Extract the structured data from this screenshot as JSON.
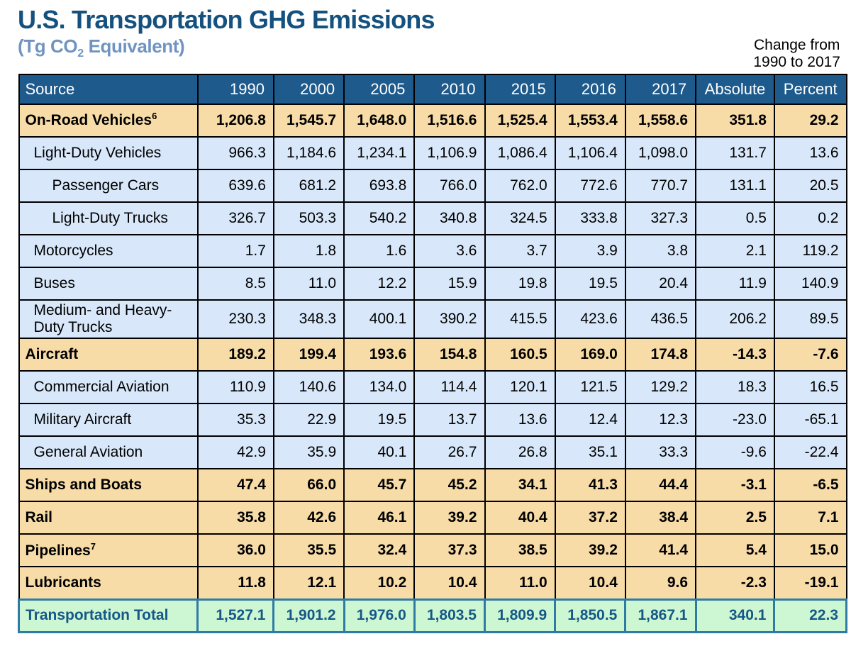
{
  "title": "U.S. Transportation GHG Emissions",
  "subtitle": {
    "pre": "(Tg CO",
    "sub": "2",
    "post": " Equivalent)"
  },
  "change_note": {
    "line1": "Change from",
    "line2": "1990 to 2017"
  },
  "colors": {
    "title": "#14517F",
    "subtitle": "#6F94C1",
    "header_bg": "#1E5A8C",
    "header_text": "#FFFFFF",
    "category_row_bg": "#F8DCA8",
    "sub_row_bg": "#D8E8FA",
    "total_row_bg": "#CDF6D3",
    "total_text": "#155887",
    "total_border": "#2E7CA6",
    "grid_border": "#000000"
  },
  "table": {
    "columns": [
      "Source",
      "1990",
      "2000",
      "2005",
      "2010",
      "2015",
      "2016",
      "2017",
      "Absolute",
      "Percent"
    ],
    "rows": [
      {
        "label": "On-Road Vehicles",
        "sup": "6",
        "level": 0,
        "style": "category",
        "values": [
          "1,206.8",
          "1,545.7",
          "1,648.0",
          "1,516.6",
          "1,525.4",
          "1,553.4",
          "1,558.6",
          "351.8",
          "29.2"
        ]
      },
      {
        "label": "Light-Duty Vehicles",
        "level": 1,
        "style": "sub",
        "values": [
          "966.3",
          "1,184.6",
          "1,234.1",
          "1,106.9",
          "1,086.4",
          "1,106.4",
          "1,098.0",
          "131.7",
          "13.6"
        ]
      },
      {
        "label": "Passenger Cars",
        "level": 2,
        "style": "sub",
        "values": [
          "639.6",
          "681.2",
          "693.8",
          "766.0",
          "762.0",
          "772.6",
          "770.7",
          "131.1",
          "20.5"
        ]
      },
      {
        "label": "Light-Duty Trucks",
        "level": 2,
        "style": "sub",
        "values": [
          "326.7",
          "503.3",
          "540.2",
          "340.8",
          "324.5",
          "333.8",
          "327.3",
          "0.5",
          "0.2"
        ]
      },
      {
        "label": "Motorcycles",
        "level": 1,
        "style": "sub",
        "values": [
          "1.7",
          "1.8",
          "1.6",
          "3.6",
          "3.7",
          "3.9",
          "3.8",
          "2.1",
          "119.2"
        ]
      },
      {
        "label": "Buses",
        "level": 1,
        "style": "sub",
        "values": [
          "8.5",
          "11.0",
          "12.2",
          "15.9",
          "19.8",
          "19.5",
          "20.4",
          "11.9",
          "140.9"
        ]
      },
      {
        "label": "Medium- and Heavy-Duty Trucks",
        "level": 1,
        "style": "sub",
        "values": [
          "230.3",
          "348.3",
          "400.1",
          "390.2",
          "415.5",
          "423.6",
          "436.5",
          "206.2",
          "89.5"
        ]
      },
      {
        "label": "Aircraft",
        "level": 0,
        "style": "category",
        "values": [
          "189.2",
          "199.4",
          "193.6",
          "154.8",
          "160.5",
          "169.0",
          "174.8",
          "-14.3",
          "-7.6"
        ]
      },
      {
        "label": "Commercial Aviation",
        "level": 1,
        "style": "sub",
        "values": [
          "110.9",
          "140.6",
          "134.0",
          "114.4",
          "120.1",
          "121.5",
          "129.2",
          "18.3",
          "16.5"
        ]
      },
      {
        "label": "Military Aircraft",
        "level": 1,
        "style": "sub",
        "values": [
          "35.3",
          "22.9",
          "19.5",
          "13.7",
          "13.6",
          "12.4",
          "12.3",
          "-23.0",
          "-65.1"
        ]
      },
      {
        "label": "General Aviation",
        "level": 1,
        "style": "sub",
        "values": [
          "42.9",
          "35.9",
          "40.1",
          "26.7",
          "26.8",
          "35.1",
          "33.3",
          "-9.6",
          "-22.4"
        ]
      },
      {
        "label": "Ships and Boats",
        "level": 0,
        "style": "category",
        "values": [
          "47.4",
          "66.0",
          "45.7",
          "45.2",
          "34.1",
          "41.3",
          "44.4",
          "-3.1",
          "-6.5"
        ]
      },
      {
        "label": "Rail",
        "level": 0,
        "style": "category",
        "values": [
          "35.8",
          "42.6",
          "46.1",
          "39.2",
          "40.4",
          "37.2",
          "38.4",
          "2.5",
          "7.1"
        ]
      },
      {
        "label": "Pipelines",
        "sup": "7",
        "level": 0,
        "style": "category",
        "values": [
          "36.0",
          "35.5",
          "32.4",
          "37.3",
          "38.5",
          "39.2",
          "41.4",
          "5.4",
          "15.0"
        ]
      },
      {
        "label": "Lubricants",
        "level": 0,
        "style": "category",
        "values": [
          "11.8",
          "12.1",
          "10.2",
          "10.4",
          "11.0",
          "10.4",
          "9.6",
          "-2.3",
          "-19.1"
        ]
      },
      {
        "label": "Transportation Total",
        "level": 0,
        "style": "total",
        "values": [
          "1,527.1",
          "1,901.2",
          "1,976.0",
          "1,803.5",
          "1,809.9",
          "1,850.5",
          "1,867.1",
          "340.1",
          "22.3"
        ]
      }
    ]
  },
  "chart_data": {
    "type": "table",
    "title": "U.S. Transportation GHG Emissions (Tg CO2 Equivalent)",
    "columns": [
      "Source",
      "1990",
      "2000",
      "2005",
      "2010",
      "2015",
      "2016",
      "2017",
      "Absolute change 1990 to 2017",
      "Percent change 1990 to 2017"
    ],
    "rows": [
      [
        "On-Road Vehicles",
        1206.8,
        1545.7,
        1648.0,
        1516.6,
        1525.4,
        1553.4,
        1558.6,
        351.8,
        29.2
      ],
      [
        "Light-Duty Vehicles",
        966.3,
        1184.6,
        1234.1,
        1106.9,
        1086.4,
        1106.4,
        1098.0,
        131.7,
        13.6
      ],
      [
        "Passenger Cars",
        639.6,
        681.2,
        693.8,
        766.0,
        762.0,
        772.6,
        770.7,
        131.1,
        20.5
      ],
      [
        "Light-Duty Trucks",
        326.7,
        503.3,
        540.2,
        340.8,
        324.5,
        333.8,
        327.3,
        0.5,
        0.2
      ],
      [
        "Motorcycles",
        1.7,
        1.8,
        1.6,
        3.6,
        3.7,
        3.9,
        3.8,
        2.1,
        119.2
      ],
      [
        "Buses",
        8.5,
        11.0,
        12.2,
        15.9,
        19.8,
        19.5,
        20.4,
        11.9,
        140.9
      ],
      [
        "Medium- and Heavy-Duty Trucks",
        230.3,
        348.3,
        400.1,
        390.2,
        415.5,
        423.6,
        436.5,
        206.2,
        89.5
      ],
      [
        "Aircraft",
        189.2,
        199.4,
        193.6,
        154.8,
        160.5,
        169.0,
        174.8,
        -14.3,
        -7.6
      ],
      [
        "Commercial Aviation",
        110.9,
        140.6,
        134.0,
        114.4,
        120.1,
        121.5,
        129.2,
        18.3,
        16.5
      ],
      [
        "Military Aircraft",
        35.3,
        22.9,
        19.5,
        13.7,
        13.6,
        12.4,
        12.3,
        -23.0,
        -65.1
      ],
      [
        "General Aviation",
        42.9,
        35.9,
        40.1,
        26.7,
        26.8,
        35.1,
        33.3,
        -9.6,
        -22.4
      ],
      [
        "Ships and Boats",
        47.4,
        66.0,
        45.7,
        45.2,
        34.1,
        41.3,
        44.4,
        -3.1,
        -6.5
      ],
      [
        "Rail",
        35.8,
        42.6,
        46.1,
        39.2,
        40.4,
        37.2,
        38.4,
        2.5,
        7.1
      ],
      [
        "Pipelines",
        36.0,
        35.5,
        32.4,
        37.3,
        38.5,
        39.2,
        41.4,
        5.4,
        15.0
      ],
      [
        "Lubricants",
        11.8,
        12.1,
        10.2,
        10.4,
        11.0,
        10.4,
        9.6,
        -2.3,
        -19.1
      ],
      [
        "Transportation Total",
        1527.1,
        1901.2,
        1976.0,
        1803.5,
        1809.9,
        1850.5,
        1867.1,
        340.1,
        22.3
      ]
    ]
  }
}
